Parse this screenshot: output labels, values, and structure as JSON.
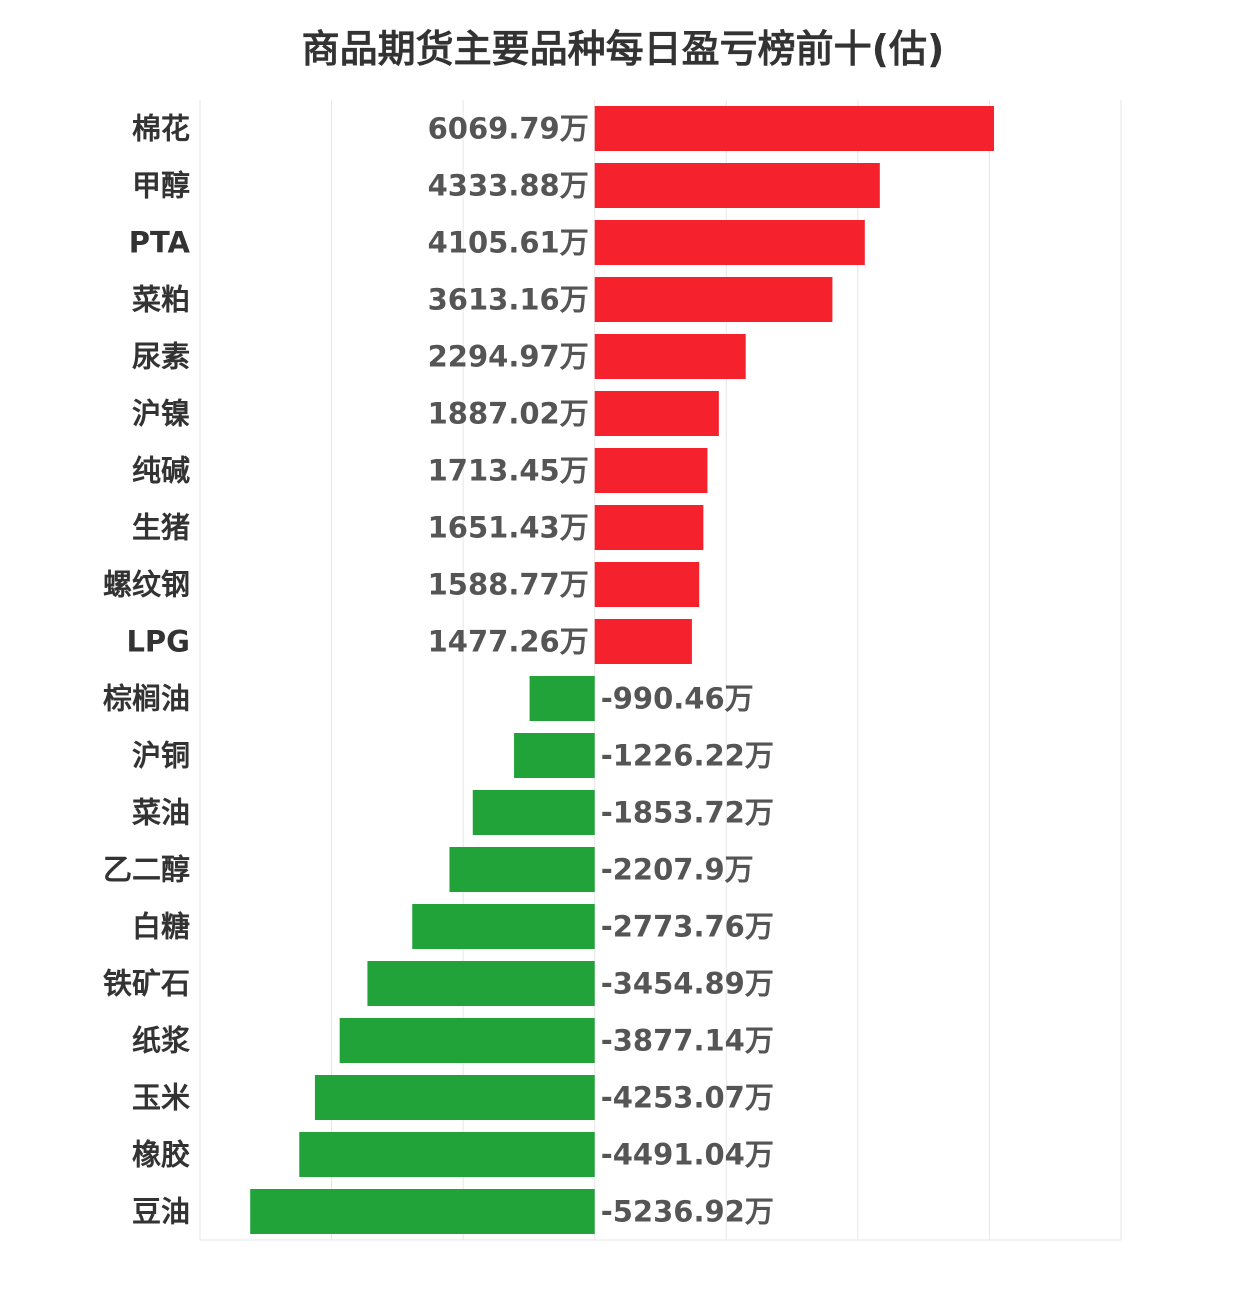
{
  "chart_data": {
    "type": "bar",
    "orientation": "horizontal",
    "title": "商品期货主要品种每日盈亏榜前十(估)",
    "unit": "万",
    "categories": [
      "棉花",
      "甲醇",
      "PTA",
      "菜粕",
      "尿素",
      "沪镍",
      "纯碱",
      "生猪",
      "螺纹钢",
      "LPG",
      "棕榈油",
      "沪铜",
      "菜油",
      "乙二醇",
      "白糖",
      "铁矿石",
      "纸浆",
      "玉米",
      "橡胶",
      "豆油"
    ],
    "values": [
      6069.79,
      4333.88,
      4105.61,
      3613.16,
      2294.97,
      1887.02,
      1713.45,
      1651.43,
      1588.77,
      1477.26,
      -990.46,
      -1226.22,
      -1853.72,
      -2207.9,
      -2773.76,
      -3454.89,
      -3877.14,
      -4253.07,
      -4491.04,
      -5236.92
    ],
    "value_labels": [
      "6069.79万",
      "4333.88万",
      "4105.61万",
      "3613.16万",
      "2294.97万",
      "1887.02万",
      "1713.45万",
      "1651.43万",
      "1588.77万",
      "1477.26万",
      "-990.46万",
      "-1226.22万",
      "-1853.72万",
      "-2207.9万",
      "-2773.76万",
      "-3454.89万",
      "-3877.14万",
      "-4253.07万",
      "-4491.04万",
      "-5236.92万"
    ],
    "xlim": [
      -6000,
      8000
    ],
    "grid": true,
    "legend": "none",
    "colors": {
      "positive": "#f5222d",
      "negative": "#22a33a",
      "grid": "#e6e6e6"
    }
  }
}
